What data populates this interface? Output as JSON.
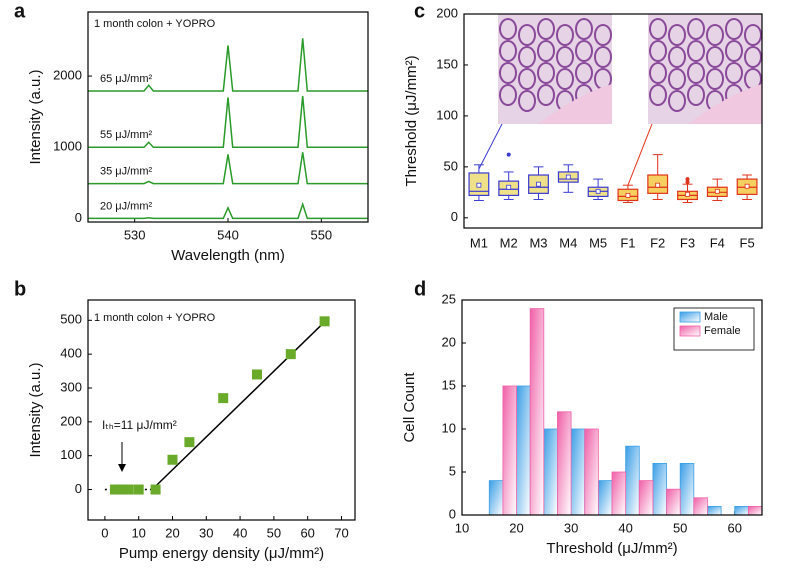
{
  "chart_data": [
    {
      "label": "a",
      "type": "line",
      "annotation": "1 month colon + YOPRO",
      "x_label": "Wavelength (nm)",
      "y_label": "Intensity (a.u.)",
      "xlim": [
        525,
        555
      ],
      "ylim": [
        -50,
        2900
      ],
      "xticks": [
        530,
        540,
        550
      ],
      "yticks": [
        0,
        1000,
        2000
      ],
      "x": [
        525,
        531,
        531.5,
        532,
        539.5,
        540,
        540.5,
        547.5,
        548,
        548.5,
        555
      ],
      "series": [
        {
          "name": "65 μJ/mm²",
          "color": "#2a9a2a",
          "values": [
            1790,
            1790,
            1870,
            1790,
            1790,
            2430,
            1790,
            1790,
            2530,
            1790,
            1790
          ]
        },
        {
          "name": "55 μJ/mm²",
          "color": "#2a9a2a",
          "values": [
            1000,
            1000,
            1070,
            1000,
            1000,
            1700,
            1000,
            1000,
            1720,
            1000,
            1000
          ]
        },
        {
          "name": "35 μJ/mm²",
          "color": "#2a9a2a",
          "values": [
            490,
            490,
            520,
            490,
            490,
            900,
            490,
            490,
            930,
            490,
            490
          ]
        },
        {
          "name": "20 μJ/mm²",
          "color": "#2a9a2a",
          "values": [
            0,
            0,
            10,
            0,
            0,
            150,
            0,
            0,
            200,
            0,
            0
          ]
        }
      ]
    },
    {
      "label": "b",
      "type": "scatter",
      "annotation": "1 month colon + YOPRO",
      "threshold_label": "Iₜₕ=11 μJ/mm²",
      "x_label": "Pump energy density (μJ/mm²)",
      "y_label": "Intensity (a.u.)",
      "xlim": [
        -5,
        74
      ],
      "ylim": [
        -90,
        560
      ],
      "xticks": [
        0,
        10,
        20,
        30,
        40,
        50,
        60,
        70
      ],
      "yticks": [
        0,
        100,
        200,
        300,
        400,
        500
      ],
      "x": [
        3,
        5,
        7,
        10,
        15,
        20,
        25,
        35,
        45,
        55,
        65
      ],
      "values": [
        0,
        0,
        0,
        0,
        0,
        88,
        140,
        270,
        340,
        400,
        497
      ],
      "color": "#6aaa2a",
      "fit": {
        "x": [
          14,
          66
        ],
        "values": [
          0,
          505
        ]
      },
      "baseline": {
        "x": [
          0,
          14
        ],
        "values": [
          0,
          0
        ]
      }
    },
    {
      "label": "c",
      "type": "box",
      "y_label": "Threshold (μJ/mm²)",
      "ylim": [
        -10,
        200
      ],
      "yticks": [
        0,
        50,
        100,
        150,
        200
      ],
      "categories": [
        "M1",
        "M2",
        "M3",
        "M4",
        "M5",
        "F1",
        "F2",
        "F3",
        "F4",
        "F5"
      ],
      "boxes": [
        {
          "whislo": 17,
          "q1": 22,
          "med": 26,
          "q3": 44,
          "whishi": 52,
          "mean": 32,
          "fliers": [],
          "color": "#3a3ad4",
          "fill": "#efe08a"
        },
        {
          "whislo": 18,
          "q1": 22,
          "med": 28,
          "q3": 36,
          "whishi": 45,
          "mean": 30,
          "fliers": [
            62
          ],
          "color": "#3a3ad4",
          "fill": "#efe08a"
        },
        {
          "whislo": 18,
          "q1": 24,
          "med": 30,
          "q3": 42,
          "whishi": 50,
          "mean": 33,
          "fliers": [],
          "color": "#3a3ad4",
          "fill": "#efe08a"
        },
        {
          "whislo": 25,
          "q1": 35,
          "med": 38,
          "q3": 45,
          "whishi": 52,
          "mean": 40,
          "fliers": [],
          "color": "#3a3ad4",
          "fill": "#efe08a"
        },
        {
          "whislo": 18,
          "q1": 21,
          "med": 26,
          "q3": 30,
          "whishi": 38,
          "mean": 26,
          "fliers": [],
          "color": "#3a3ad4",
          "fill": "#efe08a"
        },
        {
          "whislo": 15,
          "q1": 17,
          "med": 21,
          "q3": 28,
          "whishi": 32,
          "mean": 22,
          "fliers": [],
          "color": "#e0321a",
          "fill": "#f5d060"
        },
        {
          "whislo": 18,
          "q1": 24,
          "med": 30,
          "q3": 42,
          "whishi": 62,
          "mean": 32,
          "fliers": [],
          "color": "#e0321a",
          "fill": "#f5d060"
        },
        {
          "whislo": 15,
          "q1": 18,
          "med": 22,
          "q3": 26,
          "whishi": 33,
          "mean": 23,
          "fliers": [
            38,
            35
          ],
          "color": "#e0321a",
          "fill": "#f5d060"
        },
        {
          "whislo": 17,
          "q1": 21,
          "med": 25,
          "q3": 30,
          "whishi": 38,
          "mean": 26,
          "fliers": [],
          "color": "#e0321a",
          "fill": "#f5d060"
        },
        {
          "whislo": 18,
          "q1": 23,
          "med": 30,
          "q3": 38,
          "whishi": 42,
          "mean": 31,
          "fliers": [],
          "color": "#e0321a",
          "fill": "#f5d060"
        }
      ]
    },
    {
      "label": "d",
      "type": "histogram",
      "x_label": "Threshold (μJ/mm²)",
      "y_label": "Cell Count",
      "xlim": [
        10,
        65
      ],
      "ylim": [
        0,
        25
      ],
      "xticks": [
        10,
        20,
        30,
        40,
        50,
        60
      ],
      "yticks": [
        0,
        5,
        10,
        15,
        20,
        25
      ],
      "bins": [
        15,
        20,
        25,
        30,
        35,
        40,
        45,
        50,
        55,
        60,
        65
      ],
      "legend": "top-right",
      "series": [
        {
          "name": "Male",
          "color": "#3a9ee6",
          "values": [
            4,
            15,
            10,
            10,
            4,
            8,
            6,
            6,
            1,
            1
          ]
        },
        {
          "name": "Female",
          "color": "#f060a8",
          "values": [
            15,
            24,
            12,
            10,
            5,
            4,
            3,
            2,
            0,
            1
          ]
        }
      ]
    }
  ]
}
